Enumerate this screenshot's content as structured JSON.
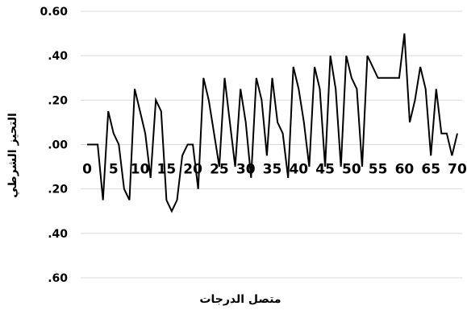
{
  "chart_data": {
    "type": "line",
    "title": "",
    "xlabel": "متصل الدرجات",
    "ylabel": "التحيز الشرطي",
    "xlim": [
      0,
      72
    ],
    "ylim": [
      -0.6,
      0.6
    ],
    "grid": true,
    "legend": "none",
    "color": "#000000",
    "x_ticks": [
      0,
      5,
      10,
      15,
      20,
      25,
      30,
      35,
      40,
      45,
      50,
      55,
      60,
      65,
      70
    ],
    "y_ticks": [
      0.6,
      0.4,
      0.2,
      0.0,
      -0.2,
      -0.4,
      -0.6
    ],
    "y_tick_labels": [
      "0.60",
      ".40",
      ".20",
      ".00",
      ".20",
      ".40",
      ".60"
    ],
    "series": [
      {
        "name": "",
        "x": [
          0,
          1,
          2,
          3,
          4,
          5,
          6,
          7,
          8,
          9,
          10,
          11,
          12,
          13,
          14,
          15,
          16,
          17,
          18,
          19,
          20,
          21,
          22,
          23,
          24,
          25,
          26,
          27,
          28,
          29,
          30,
          31,
          32,
          33,
          34,
          35,
          36,
          37,
          38,
          39,
          40,
          41,
          42,
          43,
          44,
          45,
          46,
          47,
          48,
          49,
          50,
          51,
          52,
          53,
          54,
          55,
          56,
          57,
          58,
          59,
          60,
          61,
          62,
          63,
          64,
          65,
          66,
          67,
          68,
          69,
          70
        ],
        "values": [
          0.0,
          0.0,
          0.0,
          -0.25,
          0.15,
          0.05,
          0.0,
          -0.2,
          -0.25,
          0.25,
          0.15,
          0.05,
          -0.15,
          0.2,
          0.15,
          -0.25,
          -0.3,
          -0.25,
          -0.05,
          0.0,
          0.0,
          -0.2,
          0.3,
          0.2,
          0.05,
          -0.1,
          0.3,
          0.1,
          -0.1,
          0.25,
          0.1,
          -0.15,
          0.3,
          0.2,
          -0.05,
          0.3,
          0.1,
          0.05,
          -0.15,
          0.35,
          0.25,
          0.1,
          -0.1,
          0.35,
          0.25,
          -0.1,
          0.4,
          0.25,
          -0.1,
          0.4,
          0.3,
          0.25,
          -0.1,
          0.4,
          0.35,
          0.3,
          0.3,
          0.3,
          0.3,
          0.3,
          0.5,
          0.1,
          0.2,
          0.35,
          0.25,
          -0.05,
          0.25,
          0.05,
          0.05,
          -0.05,
          0.05
        ]
      }
    ]
  }
}
